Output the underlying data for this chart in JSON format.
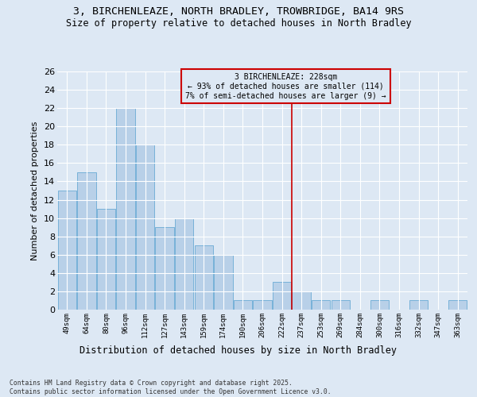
{
  "title_line1": "3, BIRCHENLEAZE, NORTH BRADLEY, TROWBRIDGE, BA14 9RS",
  "title_line2": "Size of property relative to detached houses in North Bradley",
  "xlabel": "Distribution of detached houses by size in North Bradley",
  "ylabel": "Number of detached properties",
  "categories": [
    "49sqm",
    "64sqm",
    "80sqm",
    "96sqm",
    "112sqm",
    "127sqm",
    "143sqm",
    "159sqm",
    "174sqm",
    "190sqm",
    "206sqm",
    "222sqm",
    "237sqm",
    "253sqm",
    "269sqm",
    "284sqm",
    "300sqm",
    "316sqm",
    "332sqm",
    "347sqm",
    "363sqm"
  ],
  "values": [
    13,
    15,
    11,
    22,
    18,
    9,
    10,
    7,
    6,
    1,
    1,
    3,
    2,
    1,
    1,
    0,
    1,
    0,
    1,
    0,
    1
  ],
  "bar_color": "#b8d0e8",
  "bar_edge_color": "#6aaad4",
  "vline_color": "#cc0000",
  "annotation_text": "3 BIRCHENLEAZE: 228sqm\n← 93% of detached houses are smaller (114)\n7% of semi-detached houses are larger (9) →",
  "annotation_box_color": "#cc0000",
  "ylim": [
    0,
    26
  ],
  "yticks": [
    0,
    2,
    4,
    6,
    8,
    10,
    12,
    14,
    16,
    18,
    20,
    22,
    24,
    26
  ],
  "bg_color": "#dde8f4",
  "grid_color": "#ffffff",
  "footer": "Contains HM Land Registry data © Crown copyright and database right 2025.\nContains public sector information licensed under the Open Government Licence v3.0."
}
